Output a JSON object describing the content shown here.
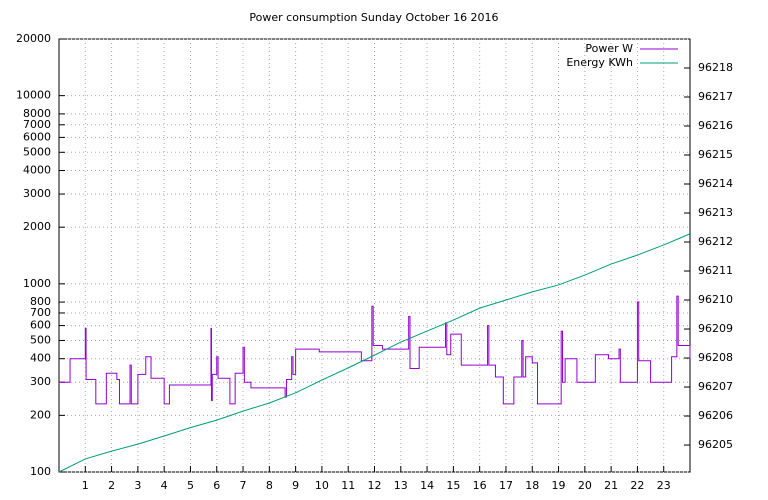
{
  "chart_data": {
    "type": "line",
    "title": "Power consumption Sunday October 16 2016",
    "xlim": [
      0,
      24
    ],
    "xticks": [
      1,
      2,
      3,
      4,
      5,
      6,
      7,
      8,
      9,
      10,
      11,
      12,
      13,
      14,
      15,
      16,
      17,
      18,
      19,
      20,
      21,
      22,
      23
    ],
    "ylim": [
      100,
      20000
    ],
    "ylog": true,
    "yticks": [
      100,
      200,
      300,
      400,
      500,
      600,
      700,
      800,
      1000,
      2000,
      3000,
      4000,
      5000,
      6000,
      7000,
      8000,
      10000,
      20000
    ],
    "y2lim": [
      96204.07,
      96219.0
    ],
    "y2ticks": [
      96205,
      96206,
      96207,
      96208,
      96209,
      96210,
      96211,
      96212,
      96213,
      96214,
      96215,
      96216,
      96217,
      96218
    ],
    "grid": true,
    "legend": "top-right",
    "series": [
      {
        "name": "Power W",
        "color": "#9400d3",
        "step": true,
        "x": [
          0,
          0.42,
          1.0,
          1.03,
          1.4,
          1.8,
          2.2,
          2.3,
          2.7,
          2.75,
          3.0,
          3.3,
          3.5,
          4.0,
          4.2,
          5.78,
          5.8,
          5.83,
          6.0,
          6.05,
          6.5,
          6.7,
          7.0,
          7.05,
          7.3,
          8.6,
          8.65,
          8.85,
          8.9,
          9.0,
          9.9,
          11.5,
          11.9,
          11.95,
          12.3,
          13.3,
          13.35,
          13.7,
          14.7,
          14.75,
          14.9,
          15.3,
          16.3,
          16.35,
          16.6,
          16.9,
          17.3,
          17.6,
          17.65,
          17.75,
          18.0,
          18.2,
          19.1,
          19.15,
          19.25,
          19.7,
          20.4,
          20.9,
          21.3,
          21.35,
          22.0,
          22.05,
          22.5,
          23.3,
          23.5,
          23.55,
          24
        ],
        "values": [
          300,
          400,
          580,
          310,
          230,
          335,
          310,
          230,
          370,
          230,
          330,
          410,
          315,
          230,
          290,
          580,
          240,
          330,
          410,
          315,
          230,
          335,
          460,
          300,
          280,
          250,
          310,
          410,
          330,
          450,
          435,
          390,
          760,
          470,
          450,
          670,
          355,
          460,
          620,
          420,
          540,
          370,
          600,
          370,
          320,
          230,
          320,
          500,
          320,
          410,
          380,
          230,
          560,
          300,
          400,
          300,
          420,
          400,
          450,
          300,
          800,
          390,
          300,
          410,
          860,
          470,
          400
        ]
      },
      {
        "name": "Energy KWh",
        "color": "#009e73",
        "axis": "y2",
        "x": [
          0,
          1,
          2,
          3,
          4,
          5,
          6,
          7,
          8,
          9,
          10,
          11,
          12,
          13,
          14,
          15,
          16,
          17,
          18,
          19,
          20,
          21,
          22,
          23,
          24
        ],
        "values": [
          96204.07,
          96204.52,
          96204.79,
          96205.03,
          96205.31,
          96205.6,
          96205.86,
          96206.17,
          96206.45,
          96206.8,
          96207.24,
          96207.66,
          96208.1,
          96208.55,
          96208.93,
          96209.31,
          96209.72,
          96210.0,
          96210.28,
          96210.52,
          96210.86,
          96211.24,
          96211.55,
          96211.9,
          96212.28
        ]
      }
    ]
  }
}
